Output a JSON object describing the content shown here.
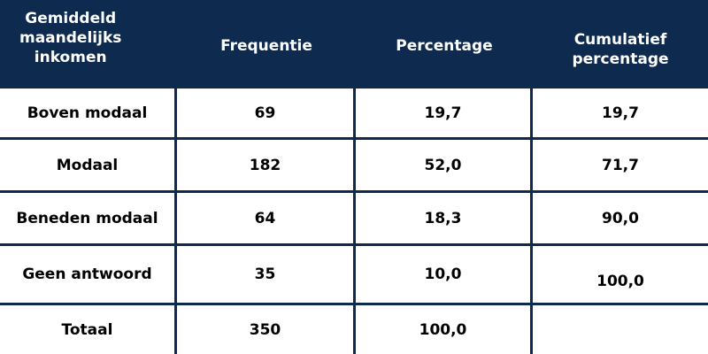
{
  "table": {
    "headers": [
      "Gemiddeld\nmaandelijks\ninkomen",
      "Frequentie",
      "Percentage",
      "Cumulatief\npercentage"
    ],
    "rows": [
      [
        "Boven modaal",
        "69",
        "19,7",
        "19,7"
      ],
      [
        "Modaal",
        "182",
        "52,0",
        "71,7"
      ],
      [
        "Beneden modaal",
        "64",
        "18,3",
        "90,0"
      ],
      [
        "Geen antwoord",
        "35",
        "10,0",
        "100,0"
      ],
      [
        "Totaal",
        "350",
        "100,0",
        ""
      ]
    ],
    "colors": {
      "header_bg": "#0e2a4e",
      "header_text": "#ffffff",
      "body_text": "#000000",
      "grid_lines": "#0e2a4e"
    }
  }
}
